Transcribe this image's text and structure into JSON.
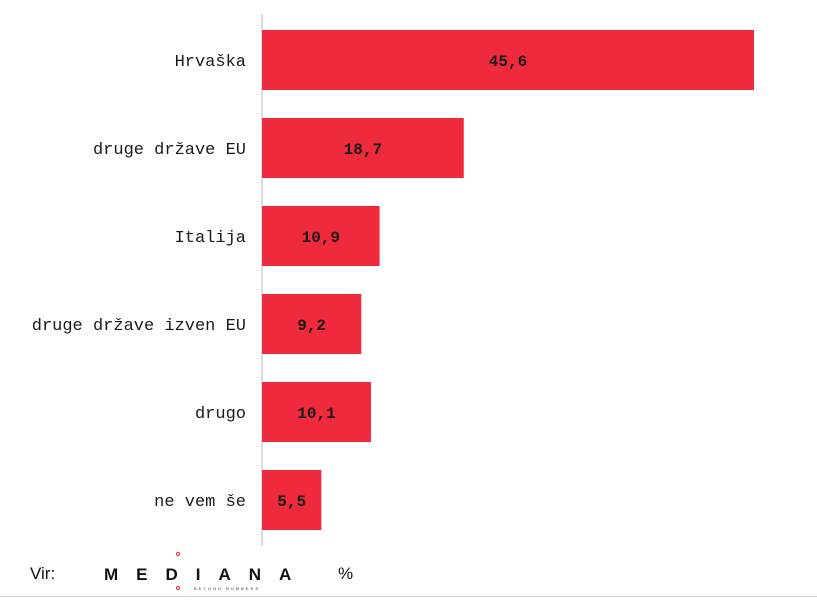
{
  "chart_data": {
    "type": "bar",
    "orientation": "horizontal",
    "categories": [
      "Hrvaška",
      "druge države EU",
      "Italija",
      "druge države izven EU",
      "drugo",
      "ne vem še"
    ],
    "values": [
      45.6,
      18.7,
      10.9,
      9.2,
      10.1,
      5.5
    ],
    "value_labels": [
      "45,6",
      "18,7",
      "10,9",
      "9,2",
      "10,1",
      "5,5"
    ],
    "xlim": [
      0,
      50
    ],
    "unit": "%",
    "grid": false,
    "bar_color": "#ee2a3c"
  },
  "footer": {
    "source_label": "Vir:",
    "logo_text": "MEDIANA",
    "logo_tagline": "BEYOND NUMBERS",
    "unit_label": "%"
  },
  "colors": {
    "bar": "#ee2a3c",
    "axis": "#bfbfbf",
    "text": "#1a1a1a",
    "logo_accent": "#e8283c"
  }
}
